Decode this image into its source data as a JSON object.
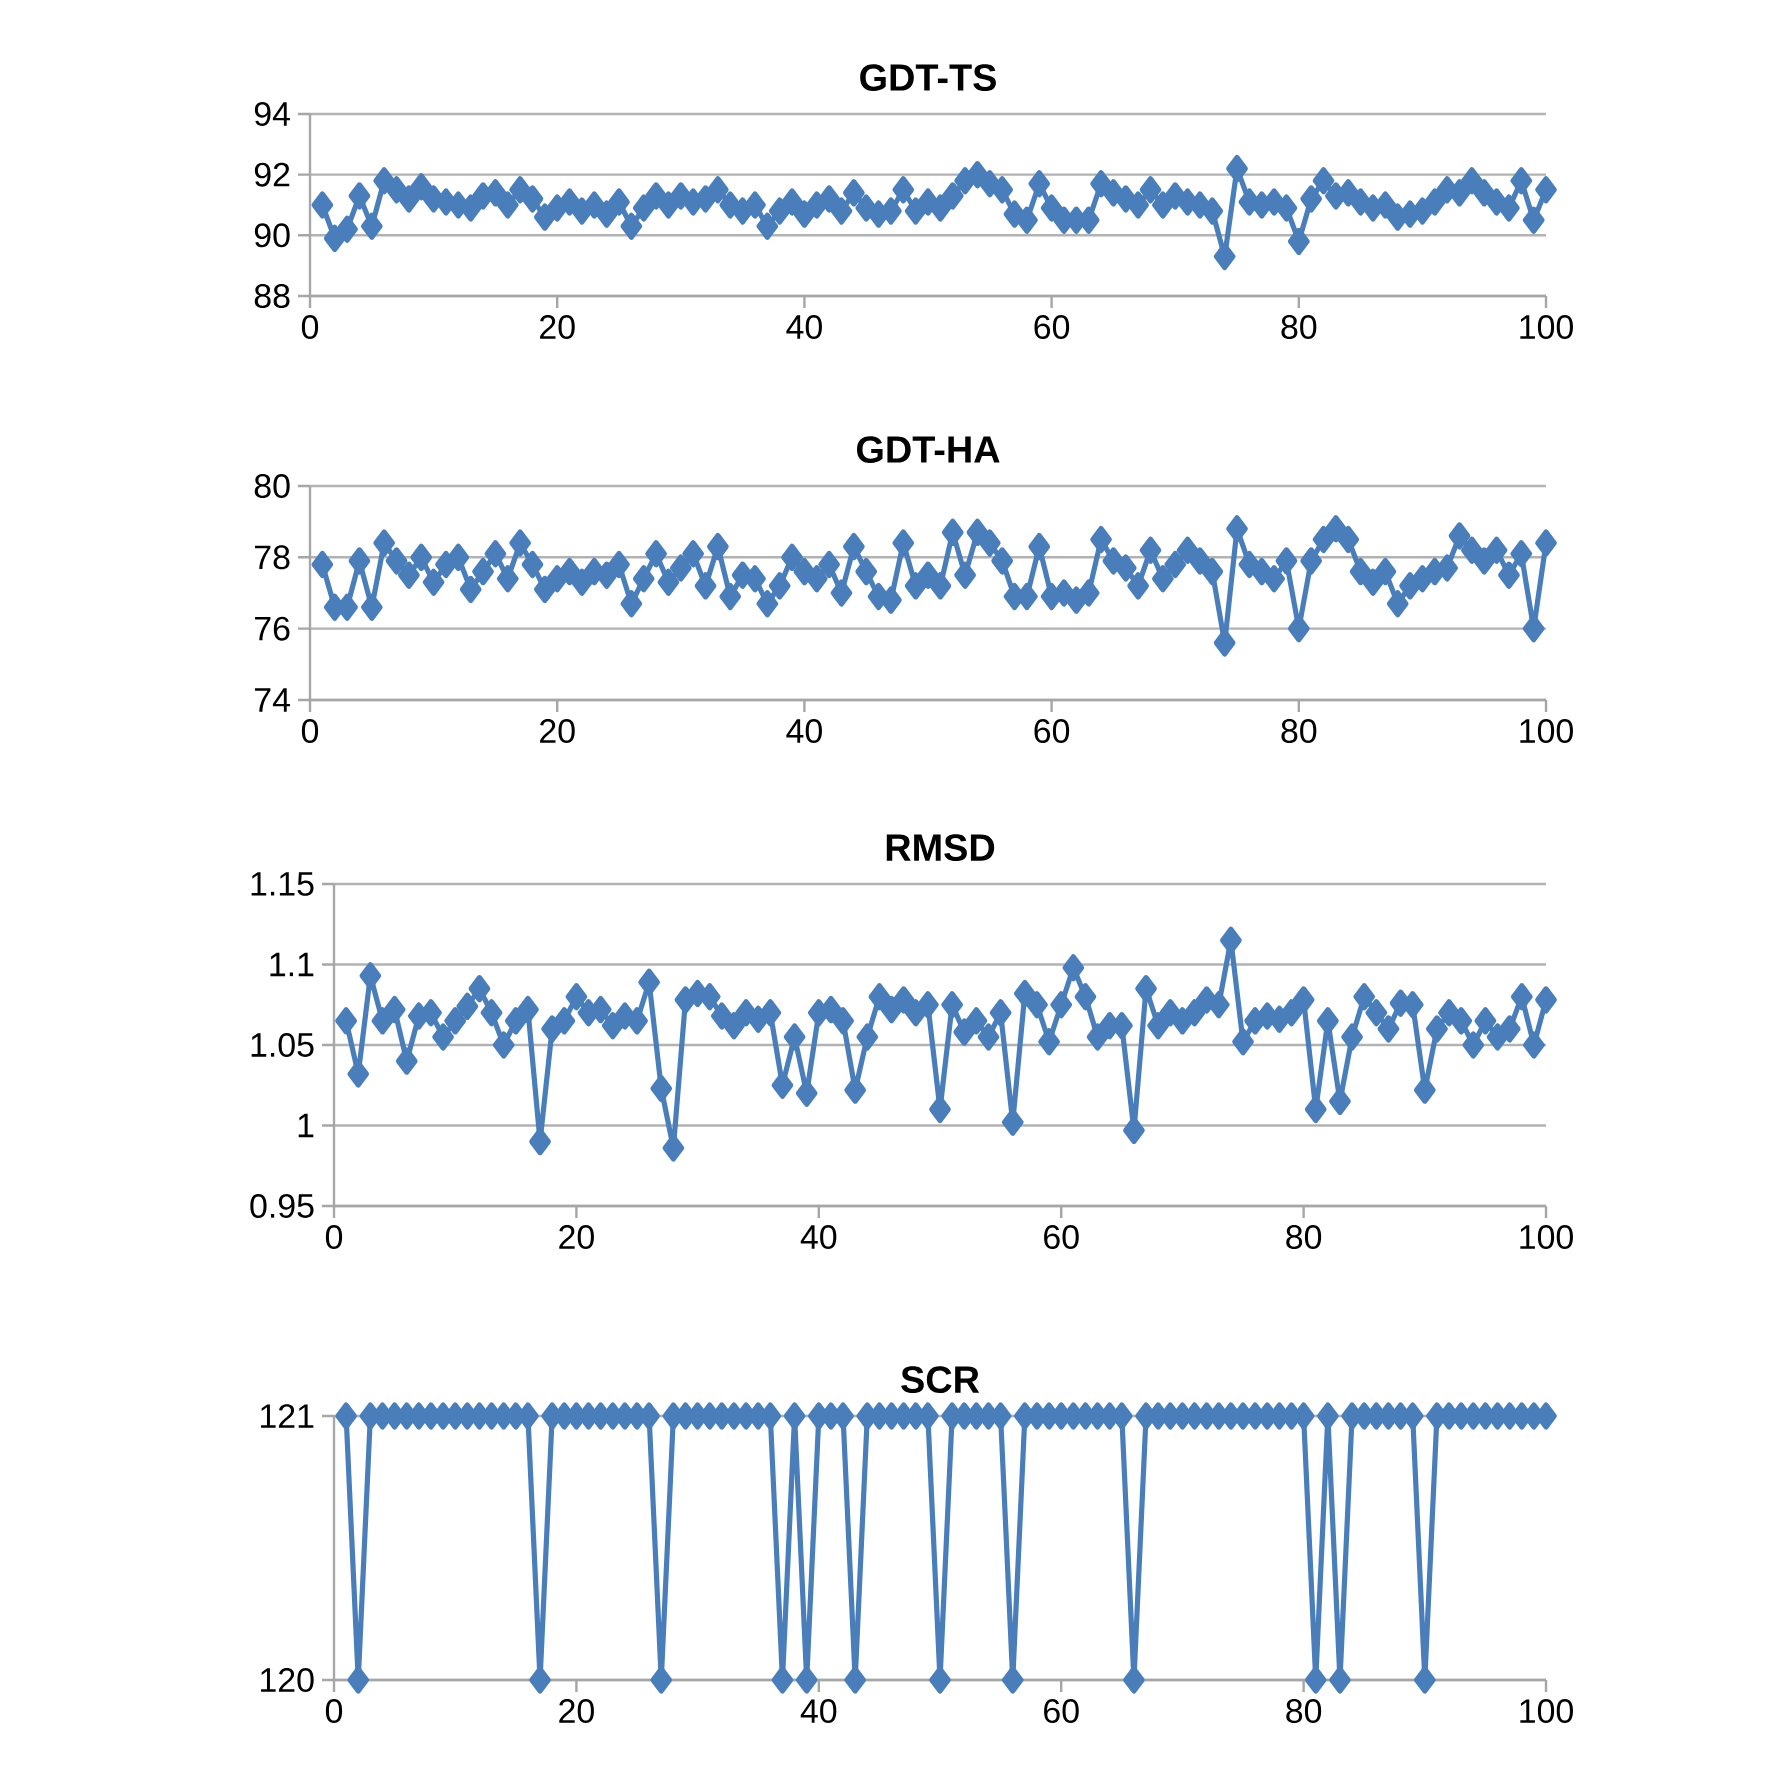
{
  "chart_data": [
    {
      "type": "line",
      "title": "GDT-TS",
      "color": "#4a7ebb",
      "marker": "diamond",
      "grid": "y",
      "xlim": [
        0,
        100
      ],
      "xticks": [
        0,
        20,
        40,
        60,
        80,
        100
      ],
      "ylim": [
        88,
        94
      ],
      "yticks": [
        88,
        90,
        92,
        94
      ],
      "x": [
        1,
        2,
        3,
        4,
        5,
        6,
        7,
        8,
        9,
        10,
        11,
        12,
        13,
        14,
        15,
        16,
        17,
        18,
        19,
        20,
        21,
        22,
        23,
        24,
        25,
        26,
        27,
        28,
        29,
        30,
        31,
        32,
        33,
        34,
        35,
        36,
        37,
        38,
        39,
        40,
        41,
        42,
        43,
        44,
        45,
        46,
        47,
        48,
        49,
        50,
        51,
        52,
        53,
        54,
        55,
        56,
        57,
        58,
        59,
        60,
        61,
        62,
        63,
        64,
        65,
        66,
        67,
        68,
        69,
        70,
        71,
        72,
        73,
        74,
        75,
        76,
        77,
        78,
        79,
        80,
        81,
        82,
        83,
        84,
        85,
        86,
        87,
        88,
        89,
        90,
        91,
        92,
        93,
        94,
        95,
        96,
        97,
        98,
        99,
        100
      ],
      "values": [
        91.0,
        89.9,
        90.2,
        91.3,
        90.3,
        91.8,
        91.5,
        91.2,
        91.6,
        91.2,
        91.1,
        91.0,
        90.9,
        91.3,
        91.4,
        91.0,
        91.5,
        91.2,
        90.6,
        90.9,
        91.1,
        90.8,
        91.0,
        90.7,
        91.1,
        90.3,
        90.9,
        91.3,
        91.0,
        91.3,
        91.1,
        91.2,
        91.5,
        91.0,
        90.8,
        91.0,
        90.3,
        90.8,
        91.1,
        90.7,
        91.0,
        91.2,
        90.8,
        91.4,
        90.9,
        90.7,
        90.8,
        91.5,
        90.8,
        91.1,
        90.9,
        91.3,
        91.8,
        92.0,
        91.7,
        91.5,
        90.7,
        90.5,
        91.7,
        90.9,
        90.5,
        90.5,
        90.5,
        91.7,
        91.4,
        91.2,
        91.0,
        91.5,
        91.0,
        91.3,
        91.1,
        91.0,
        90.8,
        89.3,
        92.2,
        91.1,
        91.0,
        91.1,
        90.9,
        89.8,
        91.2,
        91.8,
        91.3,
        91.4,
        91.1,
        90.9,
        91.0,
        90.6,
        90.7,
        90.8,
        91.1,
        91.5,
        91.4,
        91.8,
        91.4,
        91.1,
        90.9,
        91.8,
        90.5,
        91.5
      ]
    },
    {
      "type": "line",
      "title": "GDT-HA",
      "color": "#4a7ebb",
      "marker": "diamond",
      "grid": "y",
      "xlim": [
        0,
        100
      ],
      "xticks": [
        0,
        20,
        40,
        60,
        80,
        100
      ],
      "ylim": [
        74,
        80
      ],
      "yticks": [
        74,
        76,
        78,
        80
      ],
      "x": [
        1,
        2,
        3,
        4,
        5,
        6,
        7,
        8,
        9,
        10,
        11,
        12,
        13,
        14,
        15,
        16,
        17,
        18,
        19,
        20,
        21,
        22,
        23,
        24,
        25,
        26,
        27,
        28,
        29,
        30,
        31,
        32,
        33,
        34,
        35,
        36,
        37,
        38,
        39,
        40,
        41,
        42,
        43,
        44,
        45,
        46,
        47,
        48,
        49,
        50,
        51,
        52,
        53,
        54,
        55,
        56,
        57,
        58,
        59,
        60,
        61,
        62,
        63,
        64,
        65,
        66,
        67,
        68,
        69,
        70,
        71,
        72,
        73,
        74,
        75,
        76,
        77,
        78,
        79,
        80,
        81,
        82,
        83,
        84,
        85,
        86,
        87,
        88,
        89,
        90,
        91,
        92,
        93,
        94,
        95,
        96,
        97,
        98,
        99,
        100
      ],
      "values": [
        77.8,
        76.6,
        76.6,
        77.9,
        76.6,
        78.4,
        77.9,
        77.5,
        78.0,
        77.3,
        77.8,
        78.0,
        77.1,
        77.6,
        78.1,
        77.4,
        78.4,
        77.8,
        77.1,
        77.4,
        77.6,
        77.3,
        77.6,
        77.5,
        77.8,
        76.7,
        77.4,
        78.1,
        77.3,
        77.7,
        78.1,
        77.2,
        78.3,
        76.9,
        77.5,
        77.4,
        76.7,
        77.2,
        78.0,
        77.6,
        77.4,
        77.8,
        77.0,
        78.3,
        77.6,
        76.9,
        76.8,
        78.4,
        77.2,
        77.5,
        77.2,
        78.7,
        77.5,
        78.7,
        78.4,
        77.9,
        76.9,
        76.9,
        78.3,
        76.9,
        77.0,
        76.8,
        77.0,
        78.5,
        77.9,
        77.7,
        77.2,
        78.2,
        77.4,
        77.8,
        78.2,
        77.9,
        77.6,
        75.6,
        78.8,
        77.8,
        77.6,
        77.4,
        77.9,
        76.0,
        77.9,
        78.5,
        78.8,
        78.5,
        77.6,
        77.3,
        77.6,
        76.7,
        77.2,
        77.4,
        77.6,
        77.7,
        78.6,
        78.2,
        77.9,
        78.2,
        77.5,
        78.1,
        76.0,
        78.4
      ]
    },
    {
      "type": "line",
      "title": "RMSD",
      "color": "#4a7ebb",
      "marker": "diamond",
      "grid": "y",
      "xlim": [
        0,
        100
      ],
      "xticks": [
        0,
        20,
        40,
        60,
        80,
        100
      ],
      "ylim": [
        0.95,
        1.15
      ],
      "yticks": [
        0.95,
        1,
        1.05,
        1.1,
        1.15
      ],
      "x": [
        1,
        2,
        3,
        4,
        5,
        6,
        7,
        8,
        9,
        10,
        11,
        12,
        13,
        14,
        15,
        16,
        17,
        18,
        19,
        20,
        21,
        22,
        23,
        24,
        25,
        26,
        27,
        28,
        29,
        30,
        31,
        32,
        33,
        34,
        35,
        36,
        37,
        38,
        39,
        40,
        41,
        42,
        43,
        44,
        45,
        46,
        47,
        48,
        49,
        50,
        51,
        52,
        53,
        54,
        55,
        56,
        57,
        58,
        59,
        60,
        61,
        62,
        63,
        64,
        65,
        66,
        67,
        68,
        69,
        70,
        71,
        72,
        73,
        74,
        75,
        76,
        77,
        78,
        79,
        80,
        81,
        82,
        83,
        84,
        85,
        86,
        87,
        88,
        89,
        90,
        91,
        92,
        93,
        94,
        95,
        96,
        97,
        98,
        99,
        100
      ],
      "values": [
        1.065,
        1.032,
        1.093,
        1.065,
        1.072,
        1.04,
        1.068,
        1.07,
        1.055,
        1.065,
        1.074,
        1.085,
        1.07,
        1.05,
        1.065,
        1.072,
        0.99,
        1.06,
        1.065,
        1.08,
        1.07,
        1.072,
        1.062,
        1.068,
        1.065,
        1.089,
        1.023,
        0.986,
        1.078,
        1.082,
        1.08,
        1.068,
        1.062,
        1.07,
        1.066,
        1.07,
        1.025,
        1.055,
        1.02,
        1.07,
        1.072,
        1.065,
        1.022,
        1.055,
        1.08,
        1.072,
        1.078,
        1.07,
        1.075,
        1.01,
        1.075,
        1.058,
        1.065,
        1.055,
        1.07,
        1.002,
        1.082,
        1.075,
        1.052,
        1.075,
        1.098,
        1.08,
        1.055,
        1.062,
        1.062,
        0.997,
        1.085,
        1.062,
        1.07,
        1.065,
        1.07,
        1.078,
        1.075,
        1.115,
        1.052,
        1.065,
        1.068,
        1.066,
        1.07,
        1.078,
        1.01,
        1.065,
        1.015,
        1.055,
        1.08,
        1.07,
        1.06,
        1.076,
        1.075,
        1.022,
        1.06,
        1.07,
        1.065,
        1.05,
        1.065,
        1.055,
        1.06,
        1.08,
        1.05,
        1.078
      ]
    },
    {
      "type": "line",
      "title": "SCR",
      "color": "#4a7ebb",
      "marker": "diamond",
      "grid": "y",
      "xlim": [
        0,
        100
      ],
      "xticks": [
        0,
        20,
        40,
        60,
        80,
        100
      ],
      "ylim": [
        120,
        121
      ],
      "yticks": [
        120,
        121
      ],
      "x": [
        1,
        2,
        3,
        4,
        5,
        6,
        7,
        8,
        9,
        10,
        11,
        12,
        13,
        14,
        15,
        16,
        17,
        18,
        19,
        20,
        21,
        22,
        23,
        24,
        25,
        26,
        27,
        28,
        29,
        30,
        31,
        32,
        33,
        34,
        35,
        36,
        37,
        38,
        39,
        40,
        41,
        42,
        43,
        44,
        45,
        46,
        47,
        48,
        49,
        50,
        51,
        52,
        53,
        54,
        55,
        56,
        57,
        58,
        59,
        60,
        61,
        62,
        63,
        64,
        65,
        66,
        67,
        68,
        69,
        70,
        71,
        72,
        73,
        74,
        75,
        76,
        77,
        78,
        79,
        80,
        81,
        82,
        83,
        84,
        85,
        86,
        87,
        88,
        89,
        90,
        91,
        92,
        93,
        94,
        95,
        96,
        97,
        98,
        99,
        100
      ],
      "values": [
        121,
        120,
        121,
        121,
        121,
        121,
        121,
        121,
        121,
        121,
        121,
        121,
        121,
        121,
        121,
        121,
        120,
        121,
        121,
        121,
        121,
        121,
        121,
        121,
        121,
        121,
        120,
        121,
        121,
        121,
        121,
        121,
        121,
        121,
        121,
        121,
        120,
        121,
        120,
        121,
        121,
        121,
        120,
        121,
        121,
        121,
        121,
        121,
        121,
        120,
        121,
        121,
        121,
        121,
        121,
        120,
        121,
        121,
        121,
        121,
        121,
        121,
        121,
        121,
        121,
        120,
        121,
        121,
        121,
        121,
        121,
        121,
        121,
        121,
        121,
        121,
        121,
        121,
        121,
        121,
        120,
        121,
        120,
        121,
        121,
        121,
        121,
        121,
        121,
        120,
        121,
        121,
        121,
        121,
        121,
        121,
        121,
        121,
        121,
        121
      ]
    }
  ]
}
